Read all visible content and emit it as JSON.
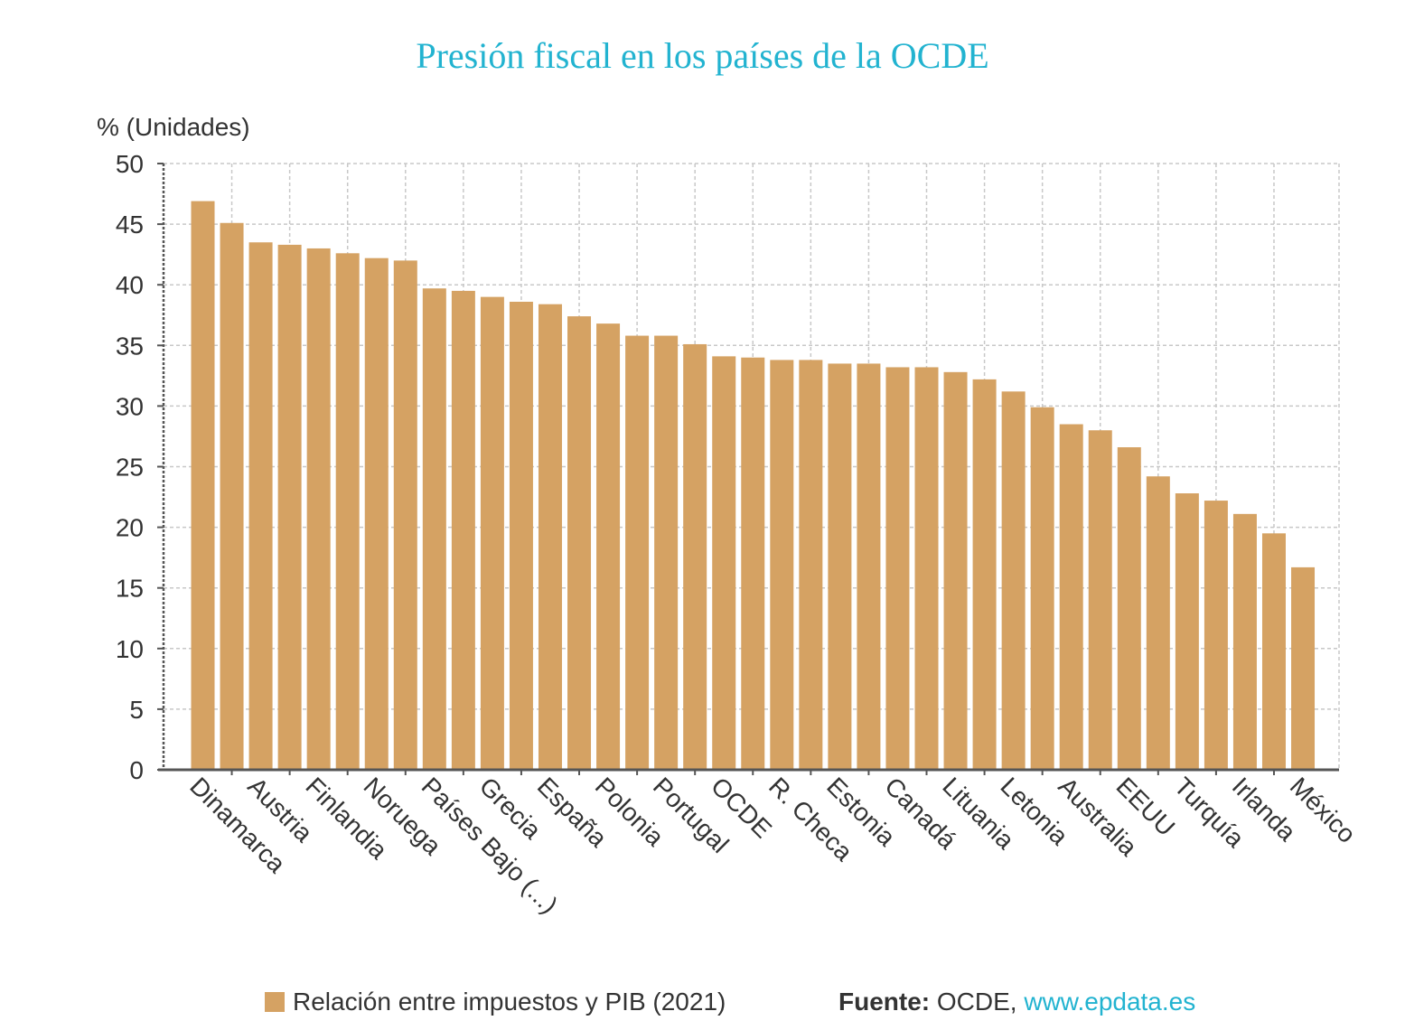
{
  "chart_data": {
    "type": "bar",
    "title": "Presión fiscal en los países de la OCDE",
    "ylabel": "% (Unidades)",
    "xlabel": "",
    "ylim": [
      0,
      50
    ],
    "yticks": [
      0,
      5,
      10,
      15,
      20,
      25,
      30,
      35,
      40,
      45,
      50
    ],
    "grid": true,
    "color": "#d5a263",
    "categories": [
      "Dinamarca",
      "",
      "Austria",
      "",
      "Finlandia",
      "",
      "Noruega",
      "",
      "Países Bajo (...)",
      "",
      "Grecia",
      "",
      "España",
      "",
      "Polonia",
      "",
      "Portugal",
      "",
      "OCDE",
      "",
      "R. Checa",
      "",
      "Estonia",
      "",
      "Canadá",
      "",
      "Lituania",
      "",
      "Letonia",
      "",
      "Australia",
      "",
      "EEUU",
      "",
      "Turquía",
      "",
      "Irlanda",
      "",
      "México"
    ],
    "series": [
      {
        "name": "Relación entre impuestos y PIB (2021)",
        "values": [
          46.9,
          45.1,
          43.5,
          43.3,
          43.0,
          42.6,
          42.2,
          42.0,
          39.7,
          39.5,
          39.0,
          38.6,
          38.4,
          37.4,
          36.8,
          35.8,
          35.8,
          35.1,
          34.1,
          34.0,
          33.8,
          33.8,
          33.5,
          33.5,
          33.2,
          33.2,
          32.8,
          32.2,
          31.2,
          29.9,
          28.5,
          28.0,
          26.6,
          24.2,
          22.8,
          22.2,
          21.1,
          19.5,
          16.7
        ]
      }
    ]
  },
  "legend": {
    "label": "Relación entre impuestos y PIB (2021)"
  },
  "source": {
    "label": "Fuente:",
    "text": " OCDE, ",
    "link": "www.epdata.es"
  }
}
